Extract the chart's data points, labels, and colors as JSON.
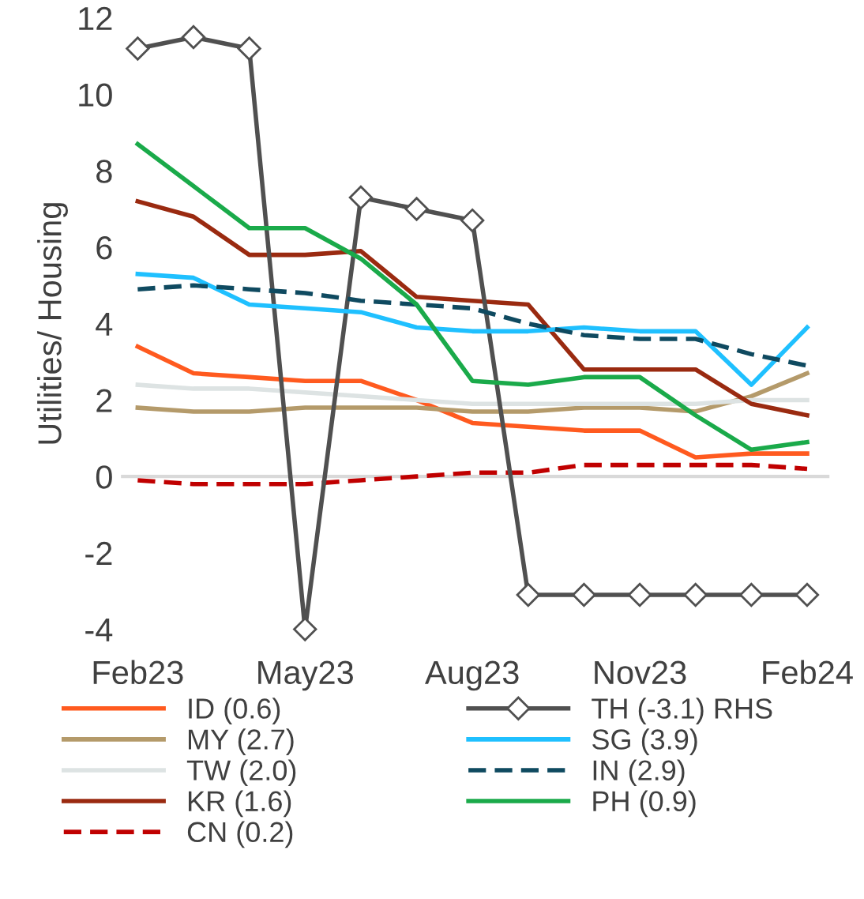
{
  "chart_data": {
    "type": "line",
    "ylabel": "Utilities/ Housing",
    "categories": [
      "Feb23",
      null,
      null,
      "May23",
      null,
      null,
      "Aug23",
      null,
      null,
      "Nov23",
      null,
      null,
      "Feb24"
    ],
    "ylim": [
      -4,
      12
    ],
    "yticks": [
      -4,
      -2,
      0,
      2,
      4,
      6,
      8,
      10,
      12
    ],
    "grid": false,
    "legend": "bottom",
    "ref_lines": [
      {
        "axis": "y",
        "value": 0,
        "color": "#d9d9d9"
      }
    ],
    "series": [
      {
        "name": "ID (0.6)",
        "color": "#ff5a1f",
        "values": [
          3.4,
          2.7,
          2.6,
          2.5,
          2.5,
          2.0,
          1.4,
          1.3,
          1.2,
          1.2,
          0.5,
          0.6,
          0.6
        ]
      },
      {
        "name": "MY (2.7)",
        "color": "#b49a6a",
        "values": [
          1.8,
          1.7,
          1.7,
          1.8,
          1.8,
          1.8,
          1.7,
          1.7,
          1.8,
          1.8,
          1.7,
          2.1,
          2.7
        ]
      },
      {
        "name": "TW (2.0)",
        "color": "#dde3e3",
        "values": [
          2.4,
          2.3,
          2.3,
          2.2,
          2.1,
          2.0,
          1.9,
          1.9,
          1.9,
          1.9,
          1.9,
          2.0,
          2.0
        ]
      },
      {
        "name": "KR (1.6)",
        "color": "#9a2a10",
        "values": [
          7.2,
          6.8,
          5.8,
          5.8,
          5.9,
          4.7,
          4.6,
          4.5,
          2.8,
          2.8,
          2.8,
          1.9,
          1.6
        ]
      },
      {
        "name": "CN (0.2)",
        "color": "#c00000",
        "line_style": "dashed",
        "values": [
          -0.1,
          -0.2,
          -0.2,
          -0.2,
          -0.1,
          0.0,
          0.1,
          0.1,
          0.3,
          0.3,
          0.3,
          0.3,
          0.2
        ]
      },
      {
        "name": "TH (-3.1) RHS",
        "color": "#505050",
        "marker": "diamond",
        "values": [
          11.2,
          11.5,
          11.2,
          -4.0,
          7.3,
          7.0,
          6.7,
          -3.1,
          -3.1,
          -3.1,
          -3.1,
          -3.1,
          -3.1
        ]
      },
      {
        "name": "SG (3.9)",
        "color": "#1fc0ff",
        "values": [
          5.3,
          5.2,
          4.5,
          4.4,
          4.3,
          3.9,
          3.8,
          3.8,
          3.9,
          3.8,
          3.8,
          2.4,
          3.9
        ]
      },
      {
        "name": "IN (2.9)",
        "color": "#0f4a60",
        "line_style": "dashed",
        "values": [
          4.9,
          5.0,
          4.9,
          4.8,
          4.6,
          4.5,
          4.4,
          4.0,
          3.7,
          3.6,
          3.6,
          3.2,
          2.9
        ]
      },
      {
        "name": "PH (0.9)",
        "color": "#1aaa4a",
        "values": [
          8.7,
          7.6,
          6.5,
          6.5,
          5.7,
          4.5,
          2.5,
          2.4,
          2.6,
          2.6,
          1.6,
          0.7,
          0.9
        ]
      }
    ]
  }
}
